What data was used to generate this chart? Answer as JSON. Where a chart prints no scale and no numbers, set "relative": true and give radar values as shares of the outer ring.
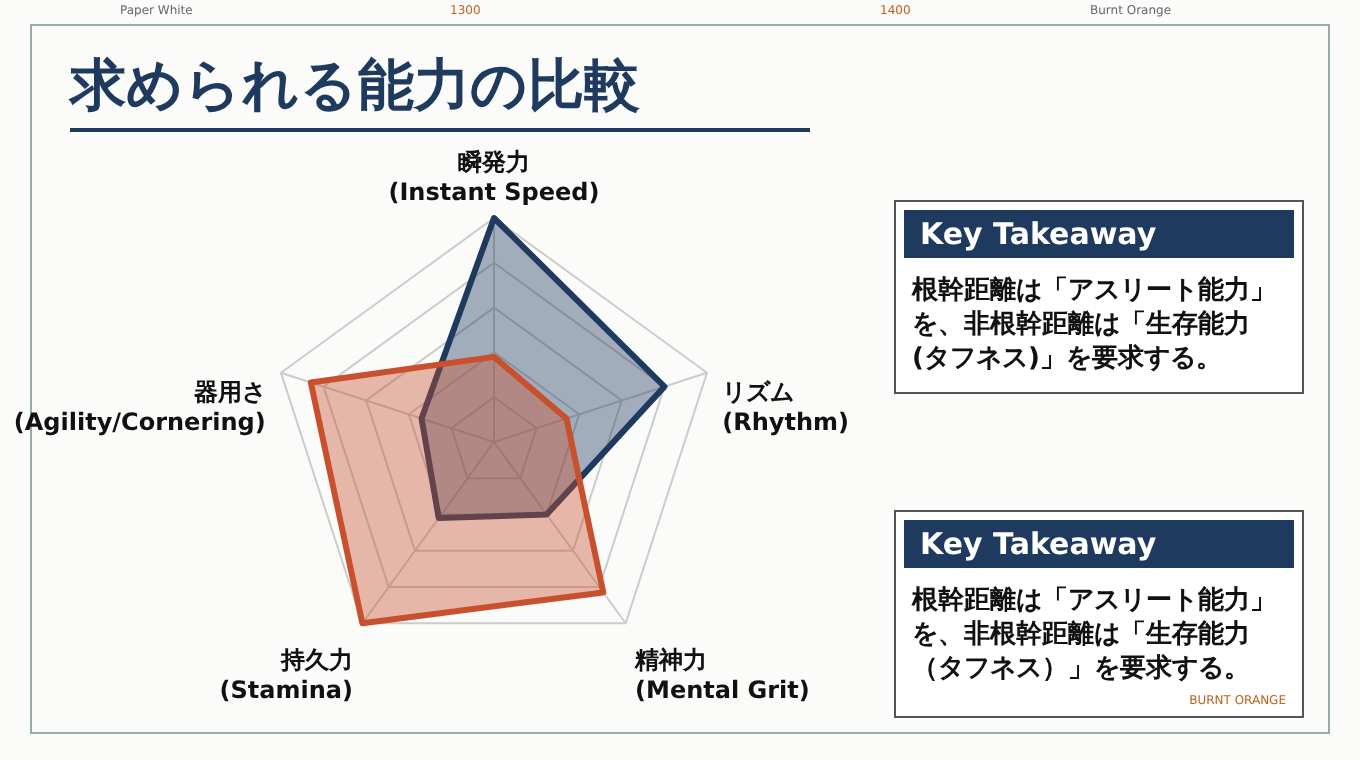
{
  "chart_data": {
    "type": "radar",
    "title": "求められる能力の比較",
    "categories": [
      "瞬発力\n(Instant Speed)",
      "リズム\n(Rhythm)",
      "精神力\n(Mental Grit)",
      "持久力\n(Stamina)",
      "器用さ\n(Agility/Cornering)"
    ],
    "relative": true,
    "grid": true,
    "series": [
      {
        "color": "#1f3a5f",
        "values": [
          1.0,
          0.8,
          0.4,
          0.42,
          0.34
        ]
      },
      {
        "color": "#c8502d",
        "values": [
          0.38,
          0.34,
          0.83,
          1.0,
          0.86
        ]
      }
    ],
    "annotations": [
      "Key Takeaway",
      "根幹距離は「アスリート能力」を、非根幹距離は「生存能力(タフネス)」を要求する。",
      "Key Takeaway",
      "根幹距離は「アスリート能力」を、非根幹距離は「生存能力（タフネス）」を要求する。",
      "Paper White",
      "1300",
      "1400",
      "Burnt Orange",
      "BURNT ORANGE"
    ]
  }
}
